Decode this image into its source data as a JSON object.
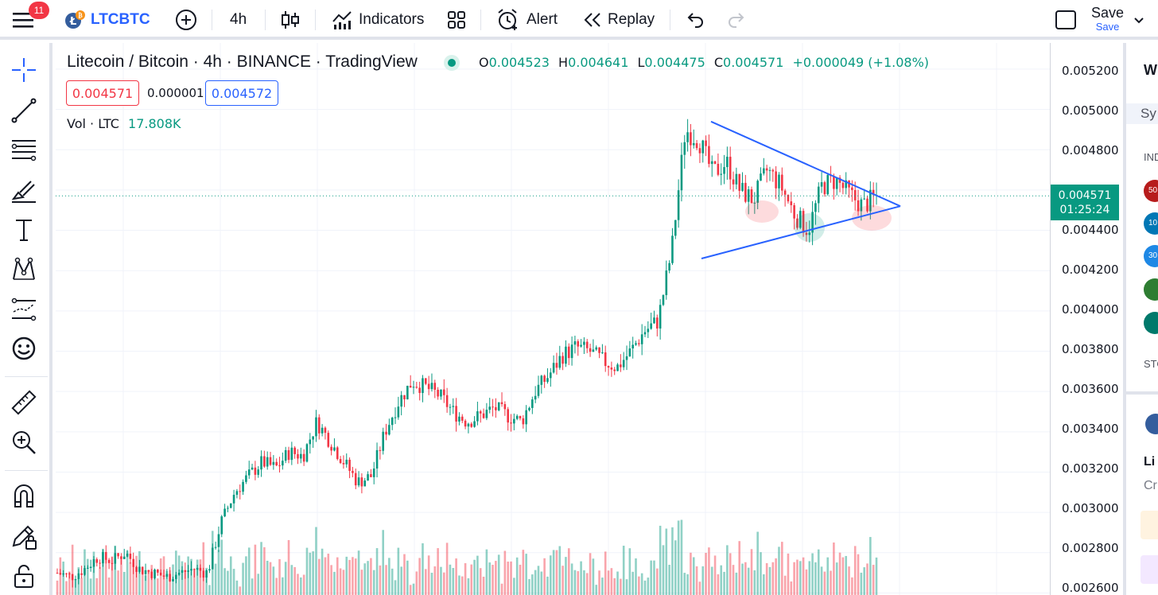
{
  "topbar": {
    "notification_count": "11",
    "symbol": "LTCBTC",
    "interval": "4h",
    "indicators_label": "Indicators",
    "alert_label": "Alert",
    "replay_label": "Replay",
    "save_label": "Save",
    "save_sub_label": "Save"
  },
  "legend": {
    "title": "Litecoin / Bitcoin · 4h · BINANCE · TradingView",
    "open_label": "O",
    "open": "0.004523",
    "high_label": "H",
    "high": "0.004641",
    "low_label": "L",
    "low": "0.004475",
    "close_label": "C",
    "close": "0.004571",
    "change": "+0.000049 (+1.08%)",
    "bid": "0.004571",
    "spread": "0.000001",
    "ask": "0.004572",
    "volume_label": "Vol · LTC",
    "volume": "17.808K"
  },
  "price_axis": {
    "labels": [
      "0.005200",
      "0.005000",
      "0.004800",
      "0.004400",
      "0.004200",
      "0.004000",
      "0.003800",
      "0.003600",
      "0.003400",
      "0.003200",
      "0.003000",
      "0.002800",
      "0.002600"
    ],
    "current_price": "0.004571",
    "countdown": "01:25:24"
  },
  "right_panel": {
    "watchlist_initial": "W",
    "symbol_col": "Sy",
    "section_1": "IND",
    "section_2": "STO",
    "item_initial": "Li",
    "item_sub": "Cr",
    "icon_labels": [
      "50",
      "10",
      "30",
      "",
      ""
    ]
  },
  "colors": {
    "up": "#089981",
    "down": "#f23645",
    "accent": "#2962ff",
    "trendline": "#2962ff"
  },
  "chart_data": {
    "type": "candlestick",
    "symbol": "LTCBTC",
    "interval": "4h",
    "exchange": "BINANCE",
    "ylim": [
      0.00259,
      0.00533
    ],
    "last_price": 0.004571,
    "trend_path": [
      0.0027,
      0.00268,
      0.00272,
      0.00278,
      0.00276,
      0.0028,
      0.00272,
      0.0027,
      0.00268,
      0.0027,
      0.00272,
      0.0027,
      0.00295,
      0.0031,
      0.00318,
      0.00325,
      0.00322,
      0.0033,
      0.00328,
      0.00345,
      0.00335,
      0.00325,
      0.00315,
      0.00318,
      0.0034,
      0.00355,
      0.00365,
      0.00362,
      0.00358,
      0.0035,
      0.00345,
      0.00348,
      0.00352,
      0.00348,
      0.00345,
      0.0036,
      0.00368,
      0.00378,
      0.00382,
      0.0038,
      0.00375,
      0.00372,
      0.0038,
      0.0039,
      0.00395,
      0.0043,
      0.0049,
      0.00485,
      0.00468,
      0.00474,
      0.0046,
      0.00455,
      0.0047,
      0.00462,
      0.00448,
      0.0044,
      0.00462,
      0.00465,
      0.00458,
      0.00452,
      0.00457
    ],
    "triangle": {
      "upper": [
        [
          0.3,
          0.00494
        ],
        [
          0.88,
          0.00452
        ]
      ],
      "lower": [
        [
          0.28,
          0.00426
        ],
        [
          0.88,
          0.00452
        ]
      ]
    }
  }
}
